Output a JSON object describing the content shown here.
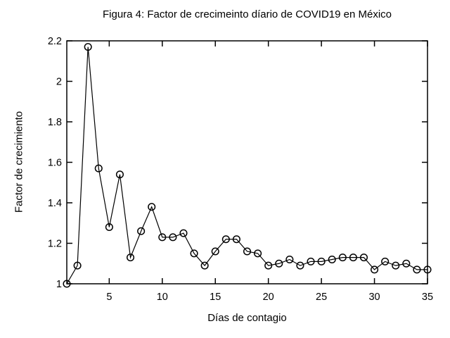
{
  "chart_data": {
    "type": "line",
    "title": "Figura 4: Factor de crecimeinto díario de COVID19 en México",
    "xlabel": "Días de contagio",
    "ylabel": "Factor de crecimiento",
    "x": [
      1,
      2,
      3,
      4,
      5,
      6,
      7,
      8,
      9,
      10,
      11,
      12,
      13,
      14,
      15,
      16,
      17,
      18,
      19,
      20,
      21,
      22,
      23,
      24,
      25,
      26,
      27,
      28,
      29,
      30,
      31,
      32,
      33,
      34,
      35
    ],
    "values": [
      1.0,
      1.09,
      2.17,
      1.57,
      1.28,
      1.54,
      1.13,
      1.26,
      1.38,
      1.23,
      1.23,
      1.25,
      1.15,
      1.09,
      1.16,
      1.22,
      1.22,
      1.16,
      1.15,
      1.09,
      1.1,
      1.12,
      1.09,
      1.11,
      1.11,
      1.12,
      1.13,
      1.13,
      1.13,
      1.07,
      1.11,
      1.09,
      1.1,
      1.07,
      1.07
    ],
    "xlim": [
      1,
      35
    ],
    "ylim": [
      1.0,
      2.2
    ],
    "x_ticks": [
      5,
      10,
      15,
      20,
      25,
      30,
      35
    ],
    "x_tick_labels": [
      "5",
      "10",
      "15",
      "20",
      "25",
      "30",
      "35"
    ],
    "y_ticks": [
      1,
      1.2,
      1.4,
      1.6,
      1.8,
      2,
      2.2
    ],
    "y_tick_labels": [
      "1",
      "1.2",
      "1.4",
      "1.6",
      "1.8",
      "2",
      "2.2"
    ],
    "marker": "open-circle",
    "line_color": "#000000",
    "frame_color": "#000000",
    "background_color": "#ffffff",
    "grid": false,
    "legend": null
  }
}
